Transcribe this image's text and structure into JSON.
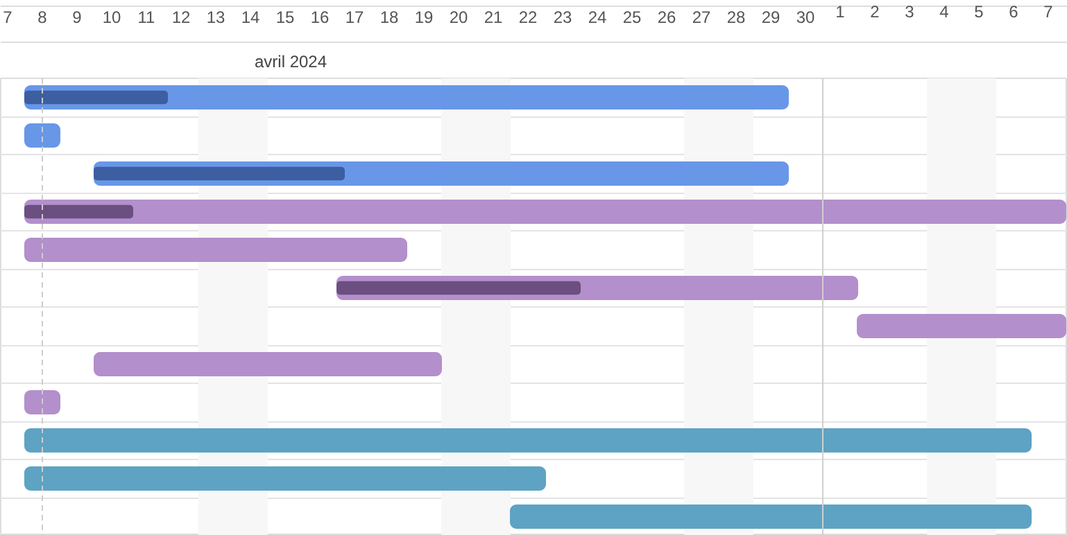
{
  "chart_data": {
    "type": "bar",
    "orientation": "horizontal",
    "title": "avril 2024",
    "categories": [
      null,
      null,
      null,
      null,
      null,
      null,
      null,
      null,
      null,
      null,
      null,
      null
    ],
    "series": [
      {
        "colors": [
          "#6897e8",
          "#6897e8",
          "#6897e8",
          "#b38fcc",
          "#b38fcc",
          "#b38fcc",
          "#b38fcc",
          "#b38fcc",
          "#b38fcc",
          "#5ea3c3",
          "#5ea3c3",
          "#5ea3c3"
        ],
        "base": [
          8,
          8,
          10,
          8,
          8,
          17,
          32,
          10,
          8,
          8,
          8,
          22
        ],
        "values": [
          22,
          1,
          20,
          30,
          11,
          15,
          6,
          10,
          1,
          29,
          15,
          15
        ]
      },
      {
        "colors": [
          "#3d5ea0",
          null,
          "#3d5ea0",
          "#6b4f80",
          null,
          "#6b4f80",
          null,
          null,
          null,
          null,
          null,
          null
        ],
        "base": [
          8,
          null,
          10,
          8,
          null,
          17,
          null,
          null,
          null,
          null,
          null,
          null
        ],
        "values": [
          4.1,
          null,
          7.2,
          3.1,
          null,
          7,
          null,
          null,
          null,
          null,
          null,
          null
        ]
      }
    ],
    "xlim": [
      7.3,
      38.06
    ],
    "xticks": [
      {
        "value": 7.5,
        "label": "7"
      },
      {
        "value": 8.5,
        "label": "8"
      },
      {
        "value": 9.5,
        "label": "9"
      },
      {
        "value": 10.5,
        "label": "10"
      },
      {
        "value": 11.5,
        "label": "11"
      },
      {
        "value": 12.5,
        "label": "12"
      },
      {
        "value": 13.5,
        "label": "13"
      },
      {
        "value": 14.5,
        "label": "14"
      },
      {
        "value": 15.5,
        "label": "15"
      },
      {
        "value": 16.5,
        "label": "16"
      },
      {
        "value": 17.5,
        "label": "17"
      },
      {
        "value": 18.5,
        "label": "18"
      },
      {
        "value": 19.5,
        "label": "19"
      },
      {
        "value": 20.5,
        "label": "20"
      },
      {
        "value": 21.5,
        "label": "21"
      },
      {
        "value": 22.5,
        "label": "22"
      },
      {
        "value": 23.5,
        "label": "23"
      },
      {
        "value": 24.5,
        "label": "24"
      },
      {
        "value": 25.5,
        "label": "25"
      },
      {
        "value": 26.5,
        "label": "26"
      },
      {
        "value": 27.5,
        "label": "27"
      },
      {
        "value": 28.5,
        "label": "28"
      },
      {
        "value": 29.5,
        "label": "29"
      },
      {
        "value": 30.5,
        "label": "30"
      }
    ],
    "x2lim": [
      -22.7,
      8.06
    ],
    "x2ticks": [
      {
        "value": 1.5,
        "label": "1"
      },
      {
        "value": 2.5,
        "label": "2"
      },
      {
        "value": 3.5,
        "label": "3"
      },
      {
        "value": 4.5,
        "label": "4"
      },
      {
        "value": 5.5,
        "label": "5"
      },
      {
        "value": 6.5,
        "label": "6"
      },
      {
        "value": 7.5,
        "label": "7"
      }
    ],
    "bands": [
      {
        "axis": "x",
        "from": 13,
        "to": 15,
        "color": "#f7f7f7"
      },
      {
        "axis": "x",
        "from": 20,
        "to": 22,
        "color": "#f7f7f7"
      },
      {
        "axis": "x",
        "from": 27,
        "to": 29,
        "color": "#f7f7f7"
      },
      {
        "axis": "x",
        "from": 34,
        "to": 36,
        "color": "#f7f7f7"
      }
    ],
    "ref_lines": [
      {
        "axis": "x",
        "value": 8.5,
        "color": "#cccccc",
        "line_style": "dashed"
      },
      {
        "axis": "x",
        "value": 31,
        "color": "#d0d0d0",
        "line_style": "solid"
      }
    ],
    "grid": "y",
    "tick_labels": "x"
  }
}
